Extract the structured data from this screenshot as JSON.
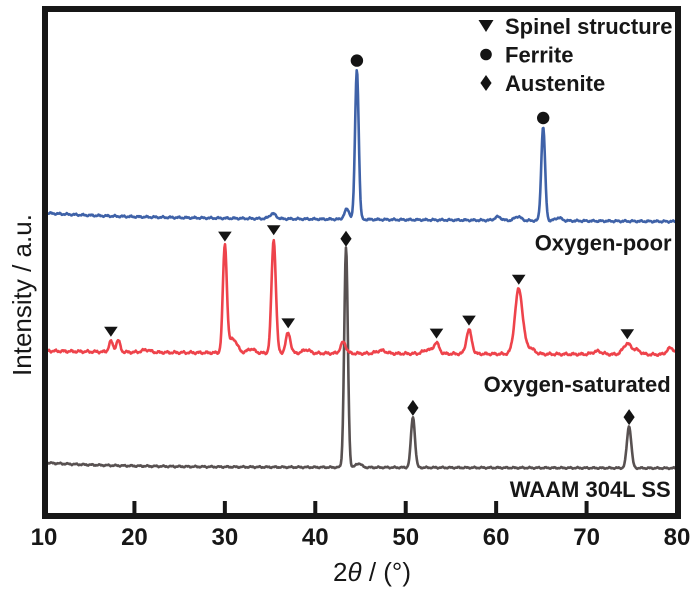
{
  "figure": {
    "background": "#ffffff",
    "frame_color": "#171717",
    "text_color": "#171717",
    "marker_color": "#141414"
  },
  "chart_data": {
    "type": "line",
    "kind": "xrd-pattern",
    "title": "",
    "xlabel": "2θ / (°)",
    "ylabel": "Intensity / a.u.",
    "x_axis": {
      "min": 10,
      "max": 80,
      "ticks": [
        10,
        20,
        30,
        40,
        50,
        60,
        70,
        80
      ]
    },
    "y_axis": {
      "ticks": []
    },
    "legend": {
      "position": "top-right-inside",
      "items": [
        {
          "marker": "triangle-down",
          "label": "Spinel structure"
        },
        {
          "marker": "circle",
          "label": "Ferrite"
        },
        {
          "marker": "diamond",
          "label": "Austenite"
        }
      ]
    },
    "series": [
      {
        "id": "oxygen-poor",
        "name": "Oxygen-poor",
        "phase_marked": "Ferrite",
        "color": "#3f62a8",
        "marker_glyph": "circle",
        "baseline": {
          "start": 0.588,
          "end": 0.58,
          "decay": {
            "amp": 0.009,
            "tau": 8
          }
        },
        "noise": 0.0024,
        "label": {
          "text": "Oxygen-poor",
          "x": 79.4,
          "y": 0.523,
          "align": "end"
        },
        "peaks": [
          {
            "x": 35.3,
            "h": 0.01,
            "w": 0.35
          },
          {
            "x": 43.5,
            "h": 0.02,
            "w": 0.28
          },
          {
            "x": 44.6,
            "h": 0.297,
            "w": 0.2,
            "marker": true
          },
          {
            "x": 60.2,
            "h": 0.007,
            "w": 0.35
          },
          {
            "x": 62.4,
            "h": 0.008,
            "w": 0.35
          },
          {
            "x": 65.2,
            "h": 0.186,
            "w": 0.21,
            "marker": true
          },
          {
            "x": 66.9,
            "h": 0.006,
            "w": 0.35
          }
        ]
      },
      {
        "id": "oxygen-saturated",
        "name": "Oxygen-saturated",
        "phase_marked": "Spinel structure",
        "color": "#ee434b",
        "marker_glyph": "triangle-down",
        "baseline": {
          "start": 0.3215,
          "end": 0.317,
          "decay": {
            "amp": 0.003,
            "tau": 8
          }
        },
        "noise": 0.0032,
        "label": {
          "text": "Oxygen-saturated",
          "x": 79.3,
          "y": 0.243,
          "align": "end"
        },
        "peaks": [
          {
            "x": 17.4,
            "h": 0.021,
            "w": 0.22,
            "marker": true
          },
          {
            "x": 18.2,
            "h": 0.023,
            "w": 0.22
          },
          {
            "x": 21.3,
            "h": 0.005,
            "w": 0.45
          },
          {
            "x": 30.0,
            "h": 0.211,
            "w": 0.22,
            "marker": true
          },
          {
            "x": 30.9,
            "h": 0.028,
            "w": 0.45
          },
          {
            "x": 32.9,
            "h": 0.008,
            "w": 0.4
          },
          {
            "x": 35.4,
            "h": 0.224,
            "w": 0.24,
            "marker": true
          },
          {
            "x": 37.0,
            "h": 0.04,
            "w": 0.26,
            "marker": true
          },
          {
            "x": 39.0,
            "h": 0.007,
            "w": 0.4
          },
          {
            "x": 43.1,
            "h": 0.022,
            "w": 0.3
          },
          {
            "x": 47.3,
            "h": 0.006,
            "w": 0.5
          },
          {
            "x": 52.4,
            "h": 0.008,
            "w": 0.45
          },
          {
            "x": 53.4,
            "h": 0.021,
            "w": 0.3,
            "marker": true
          },
          {
            "x": 57.0,
            "h": 0.047,
            "w": 0.3,
            "marker": true
          },
          {
            "x": 62.5,
            "h": 0.128,
            "w": 0.42,
            "marker": true
          },
          {
            "x": 63.7,
            "h": 0.012,
            "w": 0.5
          },
          {
            "x": 71.2,
            "h": 0.006,
            "w": 0.5
          },
          {
            "x": 74.5,
            "h": 0.021,
            "w": 0.45,
            "marker": true
          },
          {
            "x": 75.6,
            "h": 0.008,
            "w": 0.4
          },
          {
            "x": 79.3,
            "h": 0.013,
            "w": 0.4
          }
        ]
      },
      {
        "id": "waam-304l-ss",
        "name": "WAAM 304L SS",
        "phase_marked": "Austenite",
        "color": "#585151",
        "marker_glyph": "diamond",
        "baseline": {
          "start": 0.0955,
          "end": 0.0925,
          "decay": {
            "amp": 0.008,
            "tau": 7
          }
        },
        "noise": 0.002,
        "label": {
          "text": "WAAM 304L SS",
          "x": 79.3,
          "y": 0.036,
          "align": "end"
        },
        "peaks": [
          {
            "x": 43.4,
            "h": 0.434,
            "w": 0.2,
            "marker": true
          },
          {
            "x": 44.8,
            "h": 0.008,
            "w": 0.3
          },
          {
            "x": 50.8,
            "h": 0.1,
            "w": 0.22,
            "marker": true
          },
          {
            "x": 74.7,
            "h": 0.083,
            "w": 0.24,
            "marker": true
          }
        ]
      }
    ]
  }
}
